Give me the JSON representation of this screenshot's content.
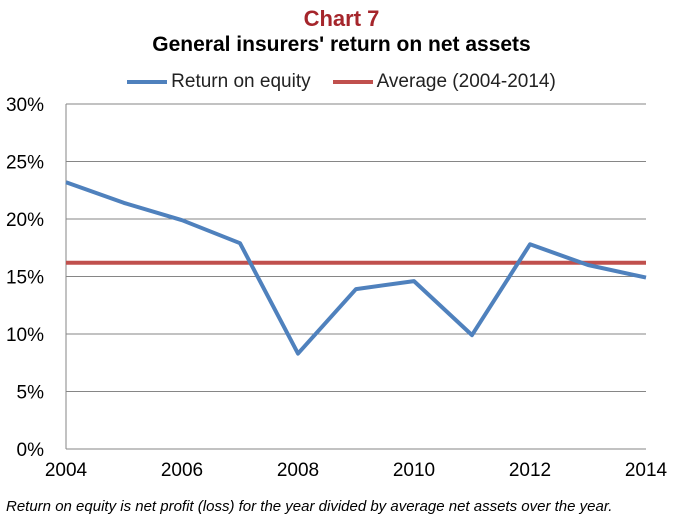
{
  "chart_label": "Chart 7",
  "footnote": "Return on equity is net profit (loss) for the year divided by average net assets over the year.",
  "chart_data": {
    "type": "line",
    "title": "General insurers' return on net assets",
    "xlabel": "",
    "ylabel": "",
    "x": [
      2004,
      2005,
      2006,
      2007,
      2008,
      2009,
      2010,
      2011,
      2012,
      2013,
      2014
    ],
    "xlim": [
      2004,
      2014
    ],
    "x_ticks": [
      "2004",
      "2006",
      "2008",
      "2010",
      "2012",
      "2014"
    ],
    "ylim": [
      0,
      30
    ],
    "y_ticks": [
      "0%",
      "5%",
      "10%",
      "15%",
      "20%",
      "25%",
      "30%"
    ],
    "grid": true,
    "legend": "top",
    "series": [
      {
        "name": "Return on equity",
        "color": "#4f81bd",
        "values": [
          23.2,
          21.4,
          19.9,
          17.9,
          8.3,
          13.9,
          14.6,
          9.9,
          17.8,
          16.0,
          14.9
        ]
      },
      {
        "name": "Average (2004-2014)",
        "color": "#c0504d",
        "values": [
          16.2,
          16.2,
          16.2,
          16.2,
          16.2,
          16.2,
          16.2,
          16.2,
          16.2,
          16.2,
          16.2
        ]
      }
    ]
  }
}
